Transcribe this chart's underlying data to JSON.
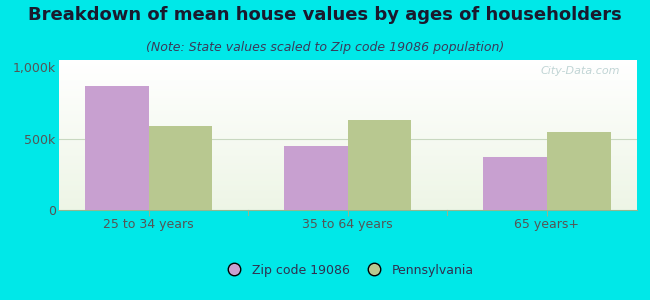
{
  "title": "Breakdown of mean house values by ages of householders",
  "subtitle": "(Note: State values scaled to Zip code 19086 population)",
  "categories": [
    "25 to 34 years",
    "35 to 64 years",
    "65 years+"
  ],
  "zip_values": [
    870000,
    450000,
    370000
  ],
  "pa_values": [
    590000,
    630000,
    545000
  ],
  "ylim": [
    0,
    1050000
  ],
  "ytick_labels": [
    "0",
    "500k",
    "1,000k"
  ],
  "ytick_values": [
    0,
    500000,
    1000000
  ],
  "zip_color": "#c8a0d0",
  "pa_color": "#b8c890",
  "background_color": "#00e8e8",
  "legend_zip_label": "Zip code 19086",
  "legend_pa_label": "Pennsylvania",
  "bar_width": 0.32,
  "watermark": "City-Data.com",
  "title_fontsize": 13,
  "subtitle_fontsize": 9,
  "tick_fontsize": 9,
  "legend_fontsize": 9,
  "title_color": "#1a1a2e",
  "subtitle_color": "#3a3a5a",
  "tick_color": "#555555"
}
